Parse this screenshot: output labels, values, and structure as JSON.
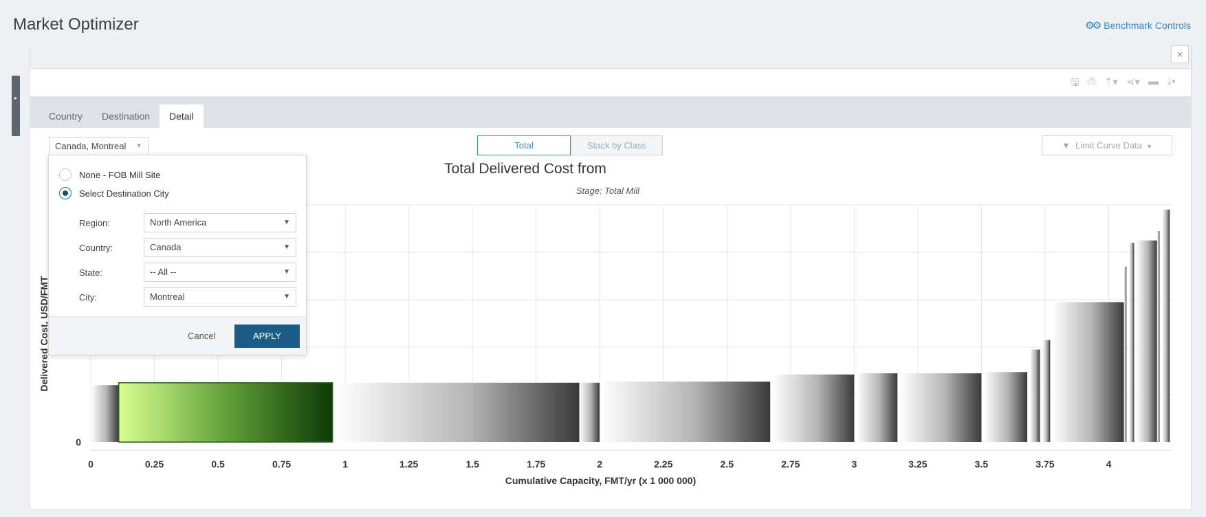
{
  "app": {
    "title": "Market Optimizer",
    "benchmark_link": "Benchmark Controls",
    "close_glyph": "×",
    "side_handle_glyph": "▸"
  },
  "toolbar": {
    "icons": [
      "save-icon",
      "print-icon",
      "pin-icon",
      "share-icon",
      "folder-icon",
      "download-icon"
    ],
    "glyphs": [
      "🖫",
      "⎙",
      "⇡▾",
      "⋖▾",
      "▬",
      "⤓▾"
    ]
  },
  "tabs": [
    {
      "label": "Country",
      "active": false
    },
    {
      "label": "Destination",
      "active": false
    },
    {
      "label": "Detail",
      "active": true
    }
  ],
  "destination_select": {
    "value": "Canada, Montreal"
  },
  "view_toggle": {
    "total_label": "Total",
    "stack_label": "Stack by Class",
    "selected": "Total"
  },
  "limit_button": {
    "label": "Limit Curve Data"
  },
  "destination_popup": {
    "options": [
      {
        "label": "None - FOB Mill Site",
        "checked": false
      },
      {
        "label": "Select Destination City",
        "checked": true
      }
    ],
    "fields": [
      {
        "label": "Region:",
        "value": "North America"
      },
      {
        "label": "Country:",
        "value": "Canada"
      },
      {
        "label": "State:",
        "value": "-- All --"
      },
      {
        "label": "City:",
        "value": "Montreal"
      }
    ],
    "cancel_label": "Cancel",
    "apply_label": "APPLY"
  },
  "chart_data": {
    "type": "bar",
    "title": "Total Delivered Cost from",
    "subtitle": "Stage: Total Mill",
    "xlabel": "Cumulative Capacity, FMT/yr (x 1 000 000)",
    "ylabel": "Delivered Cost, USD/FMT",
    "xlim": [
      0,
      4.25
    ],
    "ylim": [
      0,
      100
    ],
    "y_ticks": [
      0
    ],
    "x_ticks": [
      "0",
      "0.25",
      "0.5",
      "0.75",
      "1",
      "1.25",
      "1.5",
      "1.75",
      "2",
      "2.25",
      "2.5",
      "2.75",
      "3",
      "3.25",
      "3.5",
      "3.75",
      "4"
    ],
    "highlight_color": "#1e6b10",
    "bars": [
      {
        "x0": 0.0,
        "x1": 0.11,
        "value": 24,
        "highlight": false
      },
      {
        "x0": 0.11,
        "x1": 0.95,
        "value": 25,
        "highlight": true
      },
      {
        "x0": 0.96,
        "x1": 1.92,
        "value": 25,
        "highlight": false
      },
      {
        "x0": 1.92,
        "x1": 2.0,
        "value": 25,
        "highlight": false
      },
      {
        "x0": 2.0,
        "x1": 2.67,
        "value": 25.5,
        "highlight": false
      },
      {
        "x0": 2.68,
        "x1": 3.0,
        "value": 28.5,
        "highlight": false
      },
      {
        "x0": 3.01,
        "x1": 3.17,
        "value": 29,
        "highlight": false
      },
      {
        "x0": 3.18,
        "x1": 3.5,
        "value": 29,
        "highlight": false
      },
      {
        "x0": 3.51,
        "x1": 3.68,
        "value": 29.5,
        "highlight": false
      },
      {
        "x0": 3.69,
        "x1": 3.73,
        "value": 39,
        "highlight": false
      },
      {
        "x0": 3.74,
        "x1": 3.77,
        "value": 43,
        "highlight": false
      },
      {
        "x0": 3.78,
        "x1": 4.06,
        "value": 59,
        "highlight": false
      },
      {
        "x0": 4.06,
        "x1": 4.07,
        "value": 74,
        "highlight": false
      },
      {
        "x0": 4.08,
        "x1": 4.1,
        "value": 84,
        "highlight": false
      },
      {
        "x0": 4.11,
        "x1": 4.19,
        "value": 85,
        "highlight": false
      },
      {
        "x0": 4.19,
        "x1": 4.2,
        "value": 89,
        "highlight": false
      },
      {
        "x0": 4.21,
        "x1": 4.24,
        "value": 98,
        "highlight": false
      }
    ]
  }
}
